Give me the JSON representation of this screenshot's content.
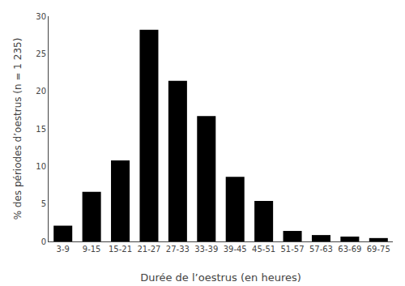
{
  "chart_data": {
    "type": "bar",
    "categories": [
      "3-9",
      "9-15",
      "15-21",
      "21-27",
      "27-33",
      "33-39",
      "39-45",
      "45-51",
      "51-57",
      "57-63",
      "63-69",
      "69-75"
    ],
    "values": [
      2.1,
      6.6,
      10.8,
      28.2,
      21.4,
      16.7,
      8.6,
      5.4,
      1.4,
      0.85,
      0.65,
      0.45
    ],
    "color": "#000000",
    "xlabel": "Durée de l’oestrus (en heures)",
    "ylabel": "% des périodes d’oestrus (n = 1 235)",
    "ylim": [
      0,
      30
    ],
    "yticks": [
      0,
      5,
      10,
      15,
      20,
      25,
      30
    ],
    "grid": false
  }
}
